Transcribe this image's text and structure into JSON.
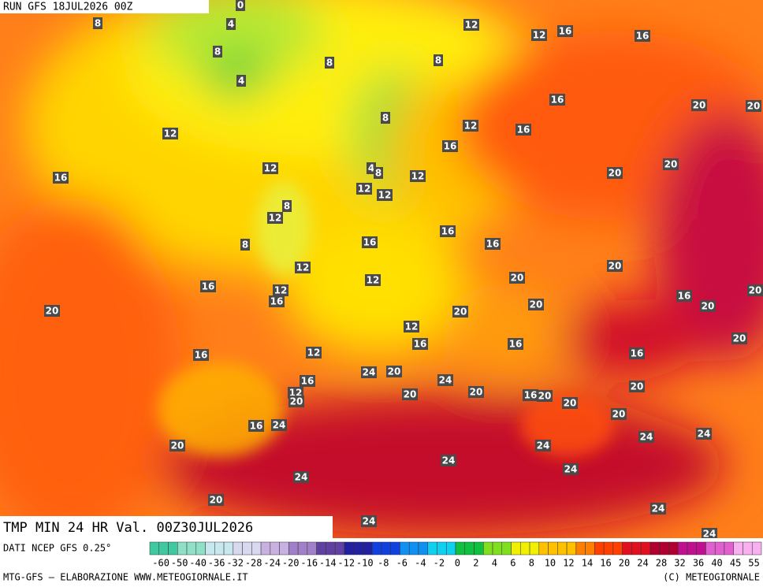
{
  "header": {
    "run": "RUN GFS 18JUL2026 00Z"
  },
  "footer": {
    "title": "TMP MIN 24 HR Val. 00Z30JUL2026",
    "source": "DATI NCEP GFS 0.25°",
    "credit": "MTG-GFS — ELABORAZIONE WWW.METEOGIORNALE.IT",
    "copyright": "(C) METEOGIORNALE"
  },
  "scale": {
    "labels": [
      -60,
      -50,
      -40,
      -36,
      -32,
      -28,
      -24,
      -20,
      -16,
      -14,
      -12,
      -10,
      -8,
      -6,
      -4,
      -2,
      0,
      2,
      4,
      6,
      8,
      10,
      12,
      14,
      16,
      20,
      24,
      28,
      32,
      36,
      40,
      45,
      55
    ]
  },
  "map": {
    "labels": [
      0,
      8,
      4,
      12,
      12,
      16,
      16,
      8,
      8,
      8,
      4,
      16,
      20,
      20,
      12,
      8,
      12,
      16,
      16,
      12,
      4,
      8,
      12,
      20,
      20,
      16,
      12,
      12,
      8,
      12,
      16,
      16,
      16,
      8,
      12,
      20,
      12,
      20,
      16,
      12,
      16,
      20,
      16,
      20,
      20,
      20,
      20,
      12,
      16,
      16,
      20,
      12,
      16,
      16,
      24,
      20,
      24,
      16,
      20,
      12,
      20,
      20,
      20,
      16,
      20,
      20,
      20,
      16,
      24,
      24,
      24,
      20,
      24,
      24,
      24,
      24,
      20,
      24,
      24,
      24
    ]
  }
}
